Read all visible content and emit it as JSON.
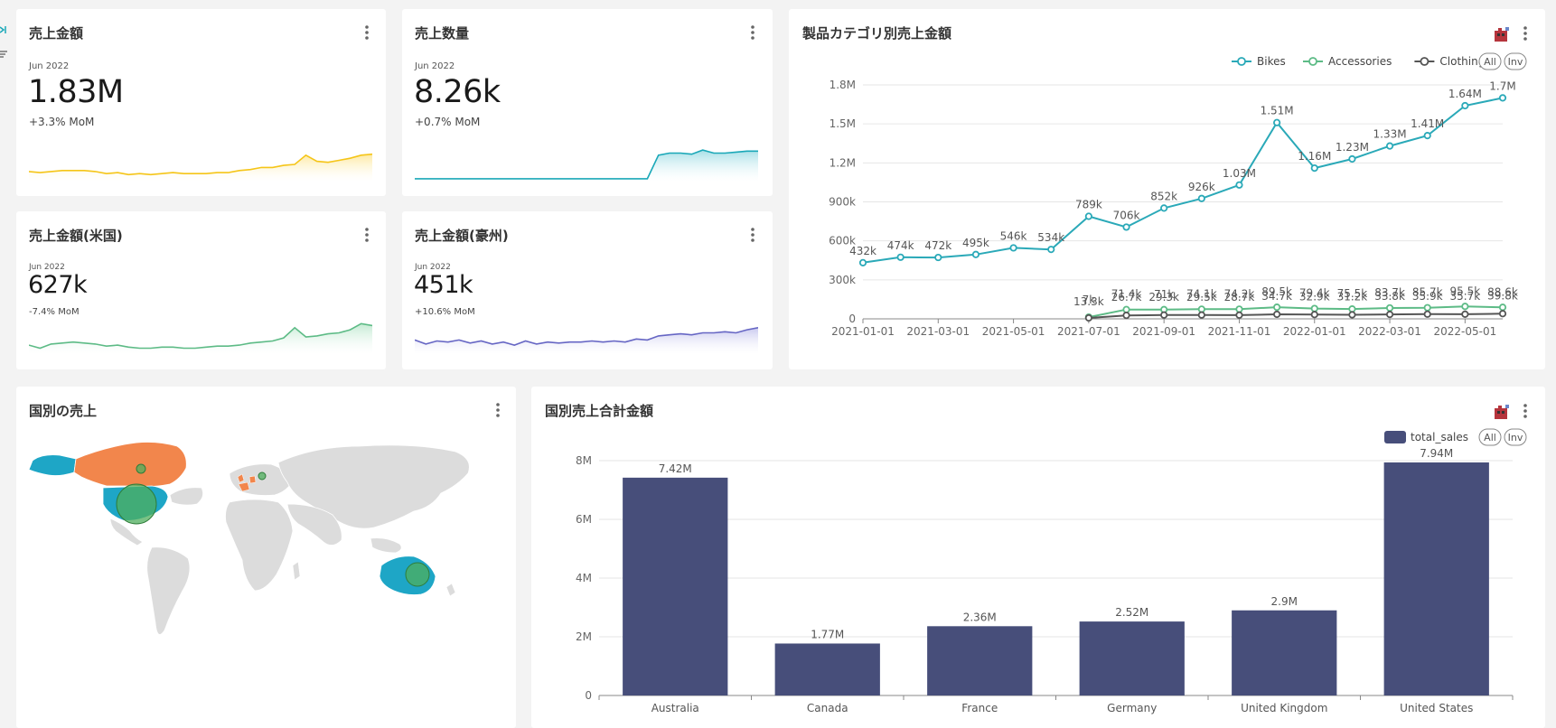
{
  "kpis": [
    {
      "title": "売上金額",
      "date": "Jun 2022",
      "value": "1.83M",
      "mom": "+3.3% MoM",
      "color": "#f5c518",
      "fill": "#fde9a0"
    },
    {
      "title": "売上数量",
      "date": "Jun 2022",
      "value": "8.26k",
      "mom": "+0.7% MoM",
      "color": "#1aa8b8",
      "fill": "#a6dfe6"
    },
    {
      "title": "売上金額(米国)",
      "date": "Jun 2022",
      "value": "627k",
      "mom": "-7.4% MoM",
      "color": "#5dbb86",
      "fill": "#c3ead2"
    },
    {
      "title": "売上金額(豪州)",
      "date": "Jun 2022",
      "value": "451k",
      "mom": "+10.6% MoM",
      "color": "#6666c4",
      "fill": "#c9c9ef"
    }
  ],
  "line_panel": {
    "title": "製品カテゴリ別売上金額",
    "legend_all": "All",
    "legend_inv": "Inv"
  },
  "map_panel": {
    "title": "国別の売上"
  },
  "bar_panel": {
    "title": "国別売上合計金額",
    "legend_all": "All",
    "legend_inv": "Inv"
  },
  "chart_data": [
    {
      "type": "line",
      "title": "製品カテゴリ別売上金額",
      "x": [
        "2021-01-01",
        "2021-02-01",
        "2021-03-01",
        "2021-04-01",
        "2021-05-01",
        "2021-06-01",
        "2021-07-01",
        "2021-08-01",
        "2021-09-01",
        "2021-10-01",
        "2021-11-01",
        "2021-12-01",
        "2022-01-01",
        "2022-02-01",
        "2022-03-01",
        "2022-04-01",
        "2022-05-01",
        "2022-06-01"
      ],
      "x_ticks": [
        "2021-01-01",
        "2021-03-01",
        "2021-05-01",
        "2021-07-01",
        "2021-09-01",
        "2021-11-01",
        "2022-01-01",
        "2022-03-01",
        "2022-05-01"
      ],
      "ylim": [
        0,
        1800000
      ],
      "y_ticks": [
        "0",
        "300k",
        "600k",
        "900k",
        "1.2M",
        "1.5M",
        "1.8M"
      ],
      "legend_position": "top-right",
      "grid": true,
      "series": [
        {
          "name": "Bikes",
          "color": "#2aa9b8",
          "values": [
            432000,
            474000,
            472000,
            495000,
            546000,
            534000,
            789000,
            706000,
            852000,
            926000,
            1030000,
            1510000,
            1160000,
            1230000,
            1330000,
            1410000,
            1640000,
            1700000
          ],
          "labels": [
            "432k",
            "474k",
            "472k",
            "495k",
            "546k",
            "534k",
            "789k",
            "706k",
            "852k",
            "926k",
            "1.03M",
            "1.51M",
            "1.16M",
            "1.23M",
            "1.33M",
            "1.41M",
            "1.64M",
            "1.7M"
          ]
        },
        {
          "name": "Accessories",
          "color": "#5dbb86",
          "values": [
            null,
            null,
            null,
            null,
            null,
            null,
            13300,
            71400,
            71000,
            74100,
            74200,
            89500,
            79400,
            75500,
            83700,
            85700,
            95500,
            88600
          ],
          "labels": [
            "",
            "",
            "",
            "",
            "",
            "",
            "13.3k",
            "71.4k",
            "71k",
            "74.1k",
            "74.2k",
            "89.5k",
            "79.4k",
            "75.5k",
            "83.7k",
            "85.7k",
            "95.5k",
            "88.6k"
          ]
        },
        {
          "name": "Clothing",
          "color": "#555555",
          "values": [
            null,
            null,
            null,
            null,
            null,
            null,
            7000,
            26700,
            29300,
            29500,
            28700,
            34700,
            32900,
            31200,
            33800,
            35900,
            35700,
            39800
          ],
          "labels": [
            "",
            "",
            "",
            "",
            "",
            "",
            "7k",
            "26.7k",
            "29.3k",
            "29.5k",
            "28.7k",
            "34.7k",
            "32.9k",
            "31.2k",
            "33.8k",
            "35.9k",
            "35.7k",
            "39.8k"
          ]
        }
      ]
    },
    {
      "type": "bar",
      "title": "国別売上合計金額",
      "categories": [
        "Australia",
        "Canada",
        "France",
        "Germany",
        "United Kingdom",
        "United States"
      ],
      "series": [
        {
          "name": "total_sales",
          "color": "#474e7a",
          "values": [
            7420000,
            1770000,
            2360000,
            2520000,
            2900000,
            7940000
          ]
        }
      ],
      "labels": [
        "7.42M",
        "1.77M",
        "2.36M",
        "2.52M",
        "2.9M",
        "7.94M"
      ],
      "ylim": [
        0,
        8000000
      ],
      "y_ticks": [
        "0",
        "2M",
        "4M",
        "6M",
        "8M"
      ],
      "legend_position": "top-right",
      "grid": true
    }
  ]
}
